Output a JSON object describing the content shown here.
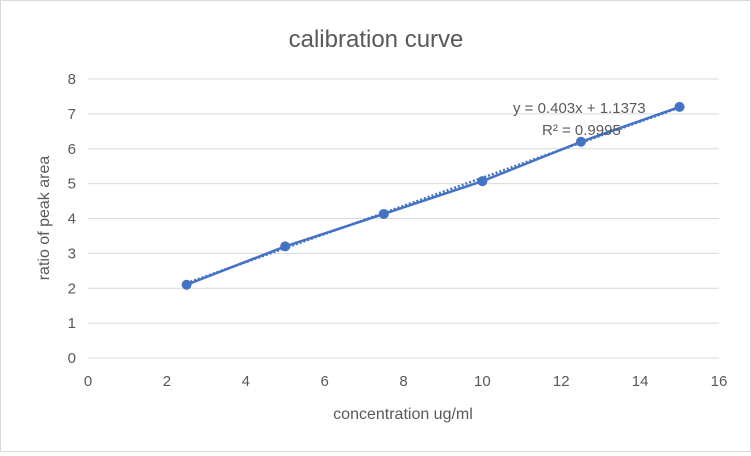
{
  "chart_data": {
    "type": "scatter",
    "title": "calibration curve",
    "xlabel": "concentration ug/ml",
    "ylabel": "ratio of peak area",
    "xlim": [
      0,
      16
    ],
    "ylim": [
      0,
      8
    ],
    "xticks": [
      0,
      2,
      4,
      6,
      8,
      10,
      12,
      14,
      16
    ],
    "yticks": [
      0,
      1,
      2,
      3,
      4,
      5,
      6,
      7,
      8
    ],
    "grid": "horizontal",
    "series": [
      {
        "x": [
          2.5,
          5,
          7.5,
          10,
          12.5,
          15
        ],
        "y": [
          2.1,
          3.2,
          4.13,
          5.07,
          6.2,
          7.2
        ],
        "color": "#4472c4",
        "lines": true,
        "markers": true
      }
    ],
    "trendline": {
      "type": "linear",
      "slope": 0.403,
      "intercept": 1.1373,
      "style": "dotted",
      "color": "#4472c4",
      "equation": "y = 0.403x + 1.1373",
      "r_squared": "R² = 0.9995"
    },
    "colors": {
      "series": "#4472c4",
      "grid": "#d9d9d9",
      "text": "#595959"
    }
  }
}
